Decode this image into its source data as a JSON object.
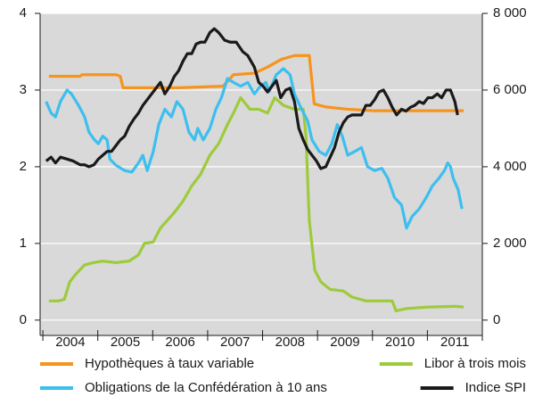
{
  "chart_data": {
    "type": "line",
    "xlim": [
      2003.95,
      2012
    ],
    "xticks": [
      {
        "value": 2004.5,
        "label": "2004"
      },
      {
        "value": 2005.5,
        "label": "2005"
      },
      {
        "value": 2006.5,
        "label": "2006"
      },
      {
        "value": 2007.5,
        "label": "2007"
      },
      {
        "value": 2008.5,
        "label": "2008"
      },
      {
        "value": 2009.5,
        "label": "2009"
      },
      {
        "value": 2010.5,
        "label": "2010"
      },
      {
        "value": 2011.5,
        "label": "2011"
      }
    ],
    "x_minor_ticks": [
      2004,
      2005,
      2006,
      2007,
      2008,
      2009,
      2010,
      2011,
      2012
    ],
    "ylim": [
      -0.2,
      4
    ],
    "yticks": [
      0,
      1,
      2,
      3,
      4
    ],
    "y2lim": [
      -400,
      8000
    ],
    "y2ticks": [
      0,
      {
        "value": 2000,
        "label": "2 000"
      },
      {
        "value": 4000,
        "label": "4 000"
      },
      {
        "value": 6000,
        "label": "6 000"
      },
      {
        "value": 8000,
        "label": "8 000"
      }
    ],
    "grid": true,
    "series": [
      {
        "name": "Hypothèques à taux variable",
        "color": "#f7941d",
        "x": [
          2004.11,
          2004.68,
          2004.71,
          2005.33,
          2005.41,
          2005.46,
          2006.47,
          2007.28,
          2007.47,
          2007.85,
          2008.09,
          2008.34,
          2008.58,
          2008.85,
          2008.94,
          2009.15,
          2009.55,
          2010.04,
          2011.01,
          2011.66
        ],
        "values": [
          3.18,
          3.18,
          3.2,
          3.2,
          3.18,
          3.03,
          3.03,
          3.05,
          3.2,
          3.22,
          3.3,
          3.4,
          3.45,
          3.45,
          2.82,
          2.78,
          2.75,
          2.73,
          2.73,
          2.73
        ]
      },
      {
        "name": "Libor à trois mois",
        "color": "#9dcb3b",
        "x": [
          2004.11,
          2004.28,
          2004.39,
          2004.49,
          2004.6,
          2004.76,
          2004.93,
          2005.09,
          2005.33,
          2005.57,
          2005.74,
          2005.85,
          2006.01,
          2006.14,
          2006.39,
          2006.55,
          2006.71,
          2006.87,
          2007.04,
          2007.2,
          2007.36,
          2007.47,
          2007.6,
          2007.77,
          2007.93,
          2008.09,
          2008.22,
          2008.38,
          2008.58,
          2008.74,
          2008.79,
          2008.85,
          2008.95,
          2009.06,
          2009.23,
          2009.47,
          2009.63,
          2009.88,
          2010.36,
          2010.43,
          2010.61,
          2011.01,
          2011.5,
          2011.66
        ],
        "values": [
          0.25,
          0.25,
          0.27,
          0.5,
          0.6,
          0.72,
          0.75,
          0.77,
          0.75,
          0.77,
          0.85,
          1.0,
          1.02,
          1.2,
          1.4,
          1.55,
          1.75,
          1.9,
          2.15,
          2.3,
          2.55,
          2.7,
          2.9,
          2.75,
          2.75,
          2.7,
          2.9,
          2.8,
          2.75,
          2.75,
          2.4,
          1.3,
          0.65,
          0.5,
          0.4,
          0.38,
          0.3,
          0.25,
          0.25,
          0.12,
          0.15,
          0.17,
          0.18,
          0.17
        ]
      },
      {
        "name": "Obligations de la Confédération à 10 ans",
        "color": "#3cbfef",
        "x": [
          2004.06,
          2004.15,
          2004.23,
          2004.32,
          2004.44,
          2004.52,
          2004.65,
          2004.76,
          2004.84,
          2004.94,
          2005.01,
          2005.09,
          2005.17,
          2005.22,
          2005.33,
          2005.49,
          2005.62,
          2005.74,
          2005.82,
          2005.9,
          2006.01,
          2006.11,
          2006.22,
          2006.34,
          2006.44,
          2006.55,
          2006.66,
          2006.76,
          2006.82,
          2006.92,
          2007.04,
          2007.15,
          2007.25,
          2007.36,
          2007.47,
          2007.6,
          2007.73,
          2007.85,
          2007.96,
          2008.06,
          2008.12,
          2008.25,
          2008.38,
          2008.5,
          2008.58,
          2008.71,
          2008.82,
          2008.9,
          2009.03,
          2009.15,
          2009.26,
          2009.36,
          2009.45,
          2009.55,
          2009.68,
          2009.8,
          2009.91,
          2010.04,
          2010.17,
          2010.28,
          2010.4,
          2010.53,
          2010.62,
          2010.72,
          2010.85,
          2010.98,
          2011.09,
          2011.21,
          2011.31,
          2011.37,
          2011.42,
          2011.47,
          2011.56,
          2011.63
        ],
        "values": [
          2.85,
          2.7,
          2.65,
          2.85,
          3.0,
          2.95,
          2.8,
          2.65,
          2.45,
          2.35,
          2.3,
          2.4,
          2.35,
          2.1,
          2.02,
          1.95,
          1.93,
          2.05,
          2.15,
          1.95,
          2.2,
          2.55,
          2.75,
          2.65,
          2.85,
          2.75,
          2.45,
          2.35,
          2.5,
          2.35,
          2.5,
          2.75,
          2.9,
          3.15,
          3.1,
          3.05,
          3.1,
          2.95,
          3.05,
          3.1,
          2.98,
          3.2,
          3.28,
          3.2,
          2.95,
          2.75,
          2.6,
          2.35,
          2.2,
          2.15,
          2.3,
          2.55,
          2.4,
          2.15,
          2.2,
          2.25,
          2.0,
          1.95,
          1.98,
          1.85,
          1.6,
          1.5,
          1.2,
          1.35,
          1.45,
          1.6,
          1.75,
          1.85,
          1.95,
          2.05,
          2.0,
          1.85,
          1.7,
          1.45
        ]
      },
      {
        "name": "Indice SPI",
        "color": "#1a1a1a",
        "axis": "y2",
        "x": [
          2004.06,
          2004.15,
          2004.23,
          2004.32,
          2004.44,
          2004.55,
          2004.68,
          2004.76,
          2004.84,
          2004.93,
          2005.01,
          2005.09,
          2005.17,
          2005.25,
          2005.33,
          2005.41,
          2005.49,
          2005.57,
          2005.66,
          2005.74,
          2005.82,
          2005.9,
          2005.98,
          2006.06,
          2006.14,
          2006.22,
          2006.31,
          2006.39,
          2006.47,
          2006.55,
          2006.63,
          2006.71,
          2006.79,
          2006.87,
          2006.95,
          2007.04,
          2007.12,
          2007.2,
          2007.31,
          2007.41,
          2007.52,
          2007.64,
          2007.73,
          2007.85,
          2007.93,
          2008.01,
          2008.09,
          2008.17,
          2008.25,
          2008.33,
          2008.42,
          2008.5,
          2008.58,
          2008.66,
          2008.74,
          2008.82,
          2008.9,
          2008.98,
          2009.06,
          2009.15,
          2009.23,
          2009.31,
          2009.39,
          2009.47,
          2009.55,
          2009.63,
          2009.71,
          2009.8,
          2009.88,
          2009.96,
          2010.04,
          2010.12,
          2010.2,
          2010.28,
          2010.36,
          2010.44,
          2010.53,
          2010.61,
          2010.69,
          2010.77,
          2010.85,
          2010.93,
          2011.01,
          2011.09,
          2011.18,
          2011.26,
          2011.34,
          2011.42,
          2011.5,
          2011.55
        ],
        "values": [
          4150,
          4250,
          4100,
          4250,
          4200,
          4150,
          4050,
          4050,
          4000,
          4050,
          4200,
          4300,
          4400,
          4400,
          4550,
          4700,
          4800,
          5050,
          5250,
          5400,
          5600,
          5750,
          5900,
          6050,
          6200,
          5900,
          6100,
          6350,
          6500,
          6750,
          6950,
          6950,
          7200,
          7250,
          7250,
          7500,
          7600,
          7500,
          7300,
          7250,
          7250,
          7000,
          6900,
          6600,
          6200,
          6100,
          5950,
          6100,
          6250,
          5800,
          6000,
          6050,
          5700,
          5000,
          4700,
          4450,
          4300,
          4150,
          3950,
          4000,
          4250,
          4500,
          4900,
          5150,
          5300,
          5350,
          5350,
          5350,
          5600,
          5600,
          5750,
          5950,
          6000,
          5800,
          5550,
          5350,
          5500,
          5450,
          5550,
          5600,
          5700,
          5650,
          5800,
          5800,
          5900,
          5800,
          6000,
          6000,
          5700,
          5350
        ]
      }
    ]
  }
}
